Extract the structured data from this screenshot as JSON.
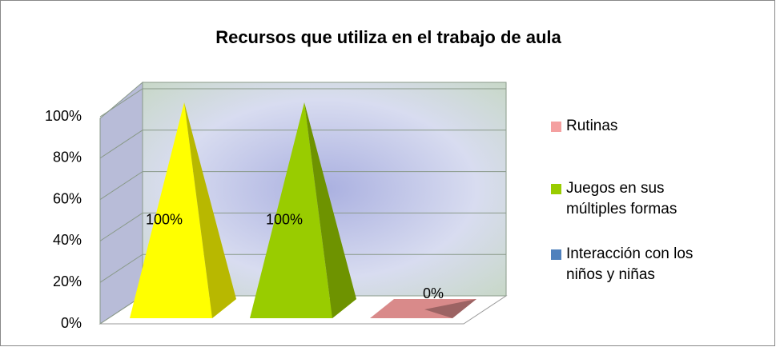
{
  "chart_data": {
    "type": "pyramid",
    "title": "Recursos que utiliza en el trabajo de aula",
    "categories": [
      null,
      null,
      null
    ],
    "values": [
      100,
      100,
      0
    ],
    "value_labels": [
      "100%",
      "100%",
      "0%"
    ],
    "colors": [
      "#ffff00",
      "#99cc00",
      "#d98a8a"
    ],
    "legend": [
      {
        "name": "Rutinas",
        "color": "#f4a0a0"
      },
      {
        "name": "Juegos en sus múltiples formas",
        "color": "#99cc00"
      },
      {
        "name": "Interacción con los niños y niñas",
        "color": "#4f81bd"
      }
    ],
    "ylim": [
      0,
      100
    ],
    "yticks": [
      {
        "value": 0,
        "label": "0%"
      },
      {
        "value": 20,
        "label": "20%"
      },
      {
        "value": 40,
        "label": "40%"
      },
      {
        "value": 60,
        "label": "60%"
      },
      {
        "value": 80,
        "label": "80%"
      },
      {
        "value": 100,
        "label": "100%"
      }
    ],
    "grid": true
  }
}
